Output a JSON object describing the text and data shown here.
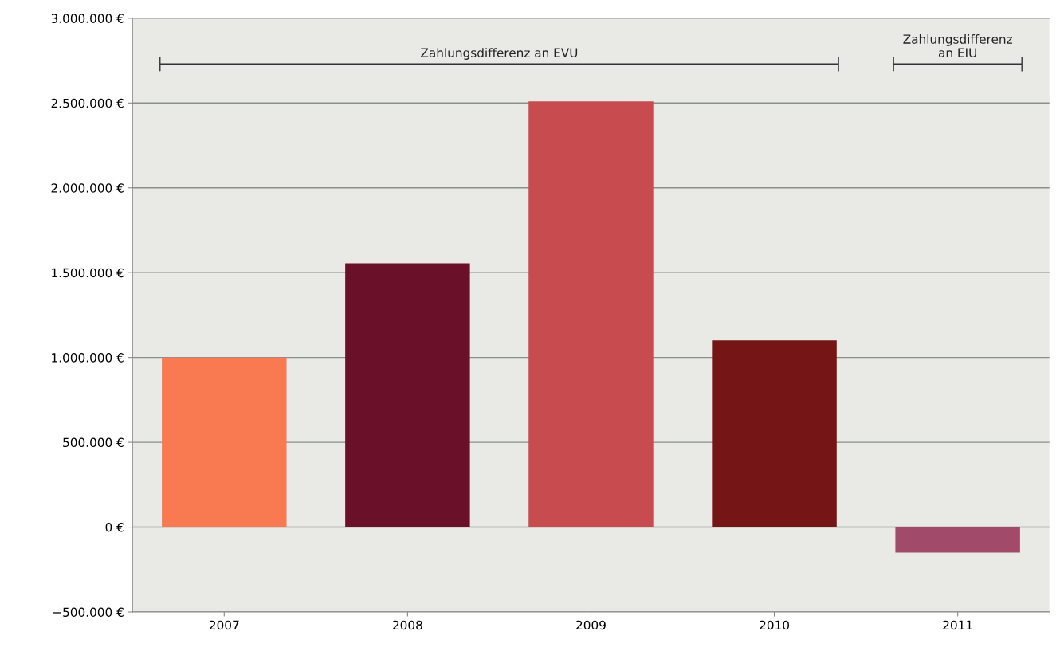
{
  "chart_data": {
    "type": "bar",
    "categories": [
      "2007",
      "2008",
      "2009",
      "2010",
      "2011"
    ],
    "values": [
      1000000,
      1555000,
      2510000,
      1100000,
      -150000
    ],
    "colors": [
      "#f97a50",
      "#6b1029",
      "#c84b50",
      "#751515",
      "#a24a6a"
    ],
    "ylim": [
      -500000,
      3000000
    ],
    "yticks": [
      {
        "value": -500000,
        "label": "−500.000 €"
      },
      {
        "value": 0,
        "label": "0 €"
      },
      {
        "value": 500000,
        "label": "500.000 €"
      },
      {
        "value": 1000000,
        "label": "1.000.000 €"
      },
      {
        "value": 1500000,
        "label": "1.500.000 €"
      },
      {
        "value": 2000000,
        "label": "2.000.000 €"
      },
      {
        "value": 2500000,
        "label": "2.500.000 €"
      },
      {
        "value": 3000000,
        "label": "3.000.000 €"
      }
    ],
    "grid": "y",
    "annotations": [
      "Zahlungsdifferenz an EVU",
      "Zahlungsdifferenz\nan EIU"
    ]
  }
}
